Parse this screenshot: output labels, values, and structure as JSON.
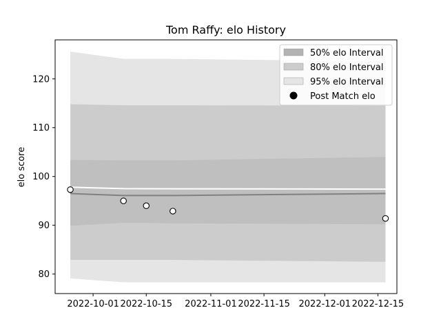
{
  "chart_data": {
    "type": "line",
    "title": "Tom Raffy: elo History",
    "xlabel": "",
    "ylabel": "elo score",
    "x_ticks": [
      "2022-10-01",
      "2022-10-15",
      "2022-11-01",
      "2022-11-15",
      "2022-12-01",
      "2022-12-15"
    ],
    "y_ticks": [
      80,
      90,
      100,
      110,
      120
    ],
    "xlim": [
      "2022-09-21",
      "2022-12-20"
    ],
    "ylim": [
      76,
      128
    ],
    "grid": false,
    "legend": {
      "placement": "top-right",
      "entries": [
        {
          "label": "50% elo Interval",
          "color": "#b3b3b3"
        },
        {
          "label": "80% elo Interval",
          "color": "#cccccc"
        },
        {
          "label": "95% elo Interval",
          "color": "#e5e5e5"
        },
        {
          "label": "Post Match elo",
          "color": "#000000"
        }
      ]
    },
    "bands": [
      {
        "name": "95% elo Interval",
        "color": "#e5e5e5",
        "x": [
          "2022-09-25",
          "2022-10-09",
          "2022-10-15",
          "2022-10-22",
          "2022-12-17"
        ],
        "upper": [
          125.6,
          124.1,
          124.1,
          124.1,
          123.6
        ],
        "lower": [
          79.1,
          78.3,
          78.3,
          78.3,
          78.3
        ]
      },
      {
        "name": "80% elo Interval",
        "color": "#cccccc",
        "x": [
          "2022-09-25",
          "2022-10-09",
          "2022-10-15",
          "2022-10-22",
          "2022-12-17"
        ],
        "upper": [
          114.8,
          114.6,
          114.6,
          114.6,
          114.5
        ],
        "lower": [
          82.9,
          82.9,
          82.9,
          82.9,
          82.5
        ]
      },
      {
        "name": "50% elo Interval",
        "color": "#bfbfbf",
        "x": [
          "2022-09-25",
          "2022-10-09",
          "2022-10-15",
          "2022-10-22",
          "2022-12-17"
        ],
        "upper": [
          103.4,
          103.3,
          103.3,
          103.3,
          104.0
        ],
        "lower": [
          89.9,
          90.5,
          90.5,
          90.4,
          90.2
        ]
      }
    ],
    "mean_line": {
      "color": "#808080",
      "x": [
        "2022-09-25",
        "2022-10-09",
        "2022-10-15",
        "2022-10-22",
        "2022-12-17"
      ],
      "y": [
        96.5,
        96.1,
        96.1,
        96.1,
        96.5
      ]
    },
    "reference_line": {
      "color": "#ffffff",
      "x": [
        "2022-09-25",
        "2022-10-09",
        "2022-12-17"
      ],
      "y": [
        97.8,
        97.5,
        97.4
      ]
    },
    "series": [
      {
        "name": "Post Match elo",
        "x": [
          "2022-09-25",
          "2022-10-09",
          "2022-10-15",
          "2022-10-22",
          "2022-12-17"
        ],
        "y": [
          97.3,
          95.0,
          94.0,
          92.9,
          91.4
        ]
      }
    ]
  }
}
